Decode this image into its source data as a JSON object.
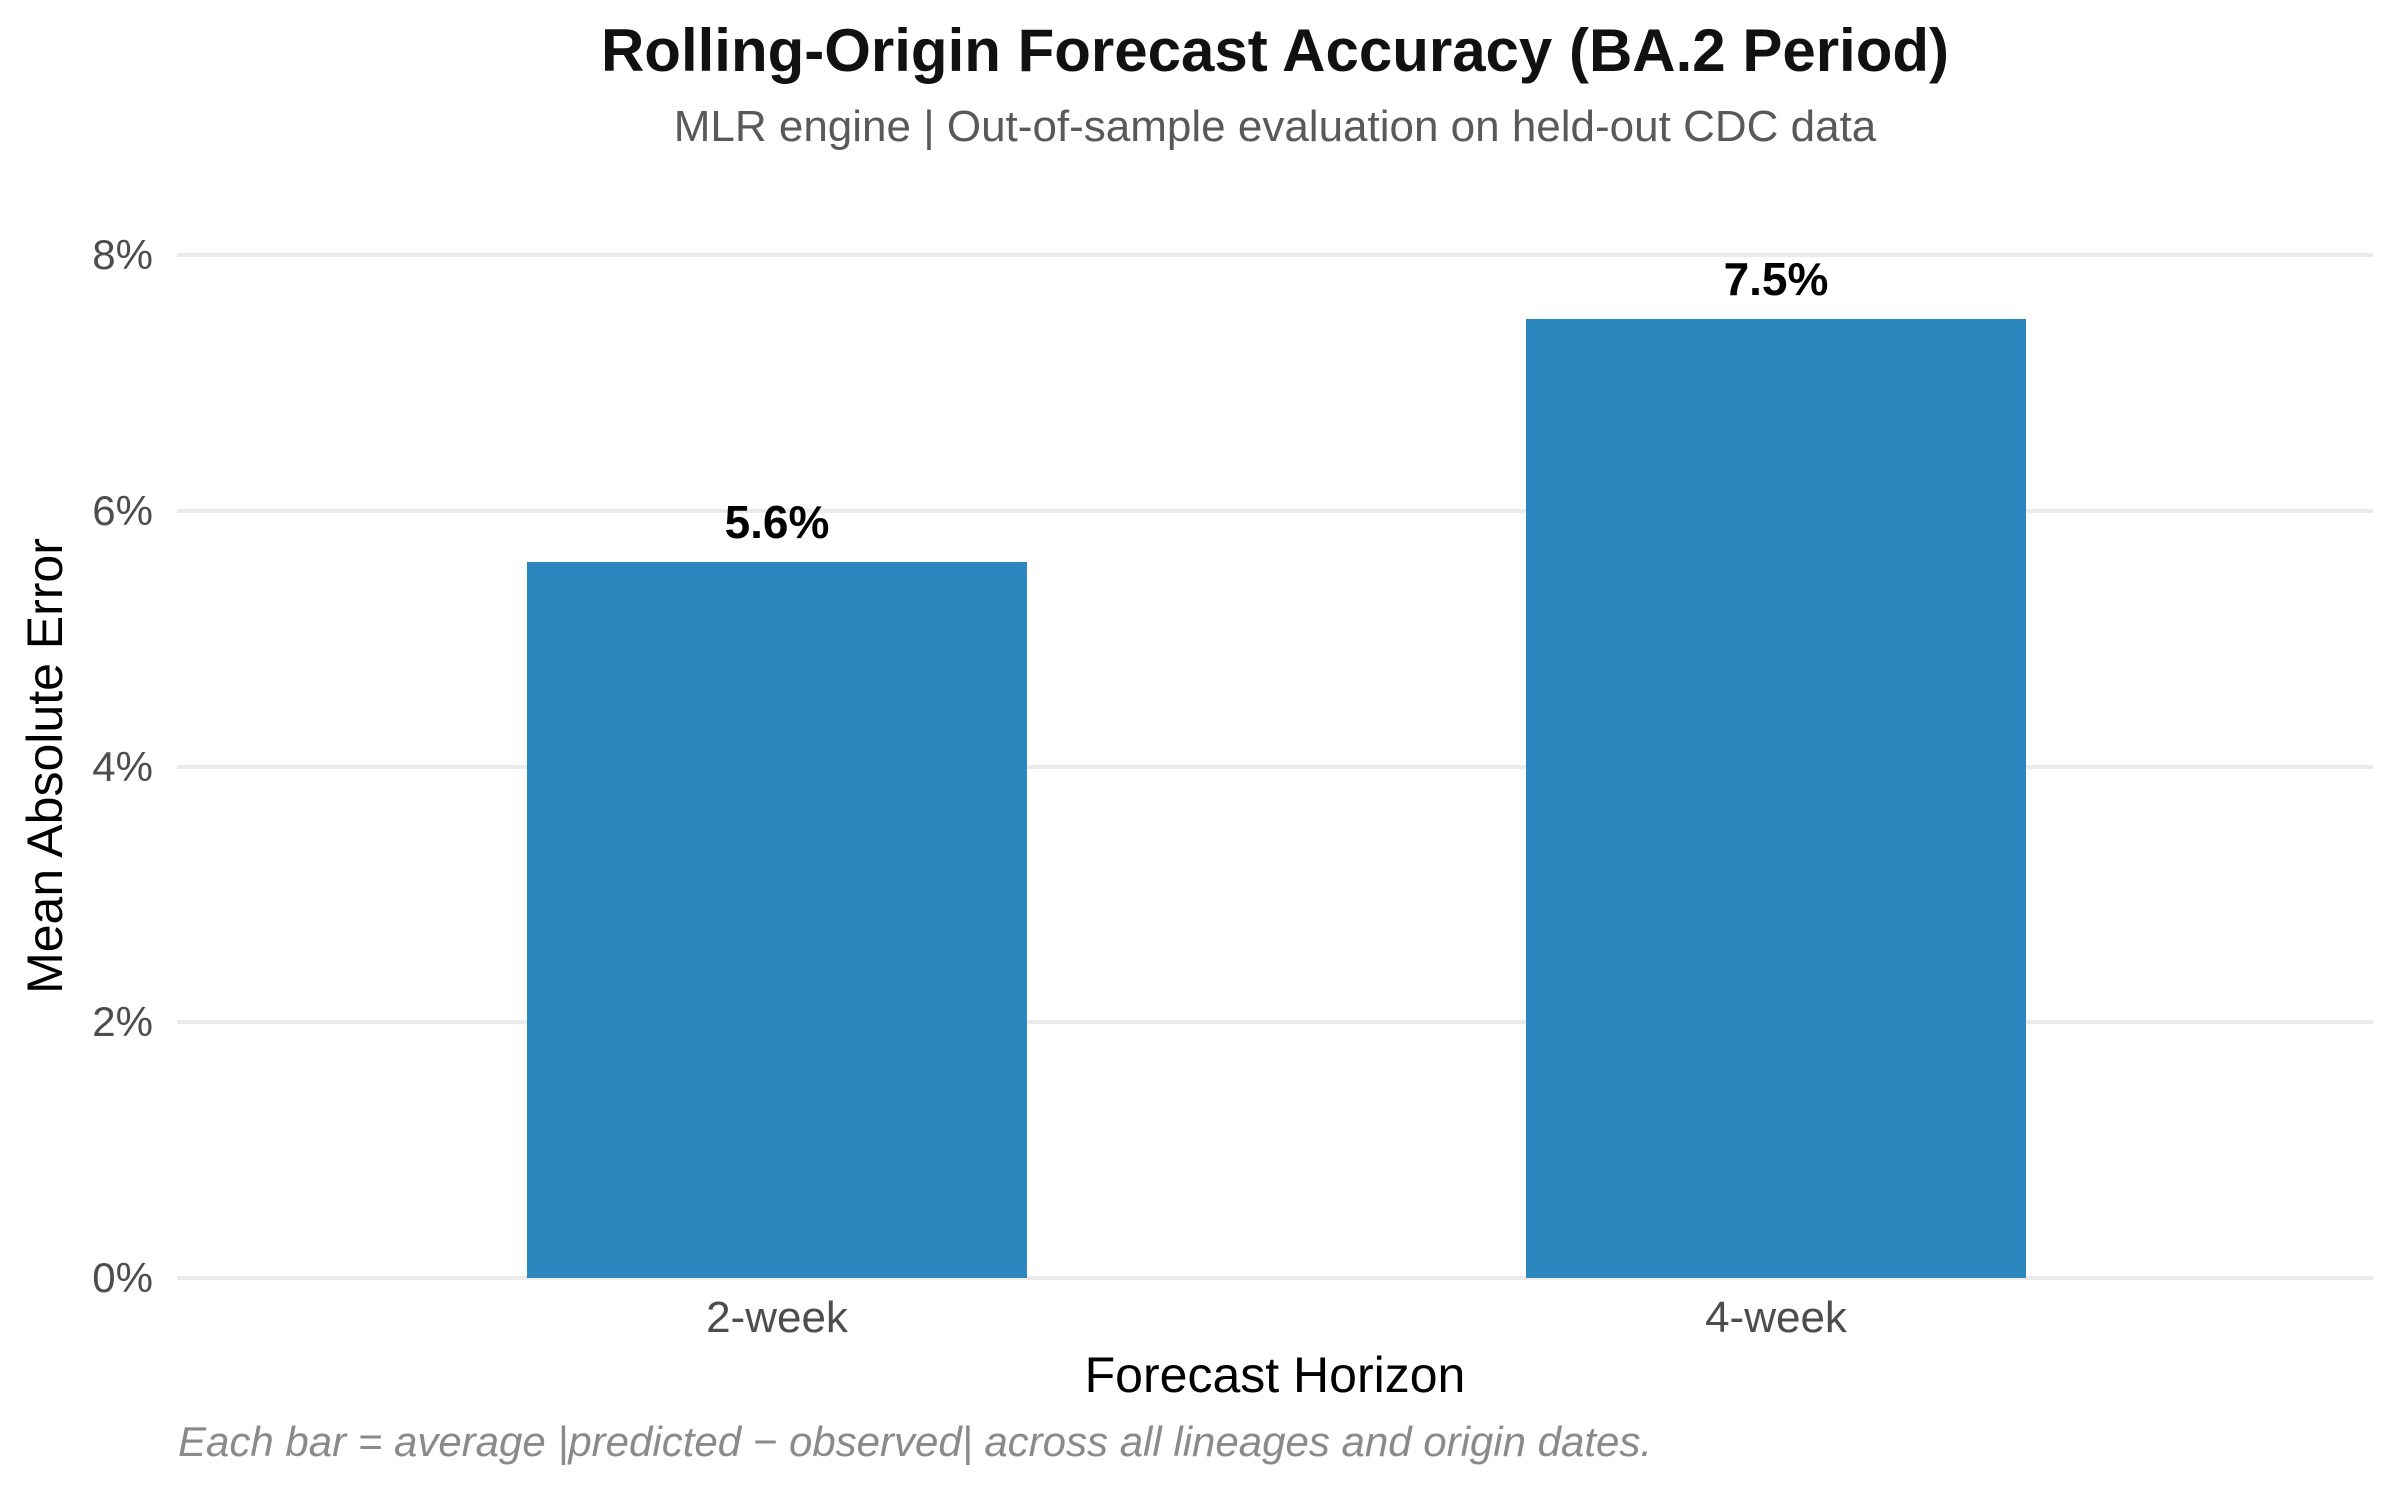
{
  "chart_data": {
    "type": "bar",
    "title": "Rolling-Origin Forecast Accuracy (BA.2 Period)",
    "subtitle": "MLR engine | Out-of-sample evaluation on held-out CDC data",
    "categories": [
      "2-week",
      "4-week"
    ],
    "values": [
      5.6,
      7.5
    ],
    "bar_labels": [
      "5.6%",
      "7.5%"
    ],
    "xlabel": "Forecast Horizon",
    "ylabel": "Mean Absolute Error",
    "ylim": [
      0,
      8
    ],
    "yticks": [
      {
        "value": 0,
        "label": "0%"
      },
      {
        "value": 2,
        "label": "2%"
      },
      {
        "value": 4,
        "label": "4%"
      },
      {
        "value": 6,
        "label": "6%"
      },
      {
        "value": 8,
        "label": "8%"
      }
    ],
    "grid": "horizontal",
    "legend_position": "none",
    "footnote": "Each bar = average |predicted − observed| across all lineages and origin dates."
  },
  "colors": {
    "background": "#ffffff",
    "bar": "#2b87bd",
    "grid": "#ebebeb",
    "title": "#111111",
    "subtitle": "#595959",
    "tick": "#4d4d4d",
    "footnote": "#8a8a8a"
  }
}
